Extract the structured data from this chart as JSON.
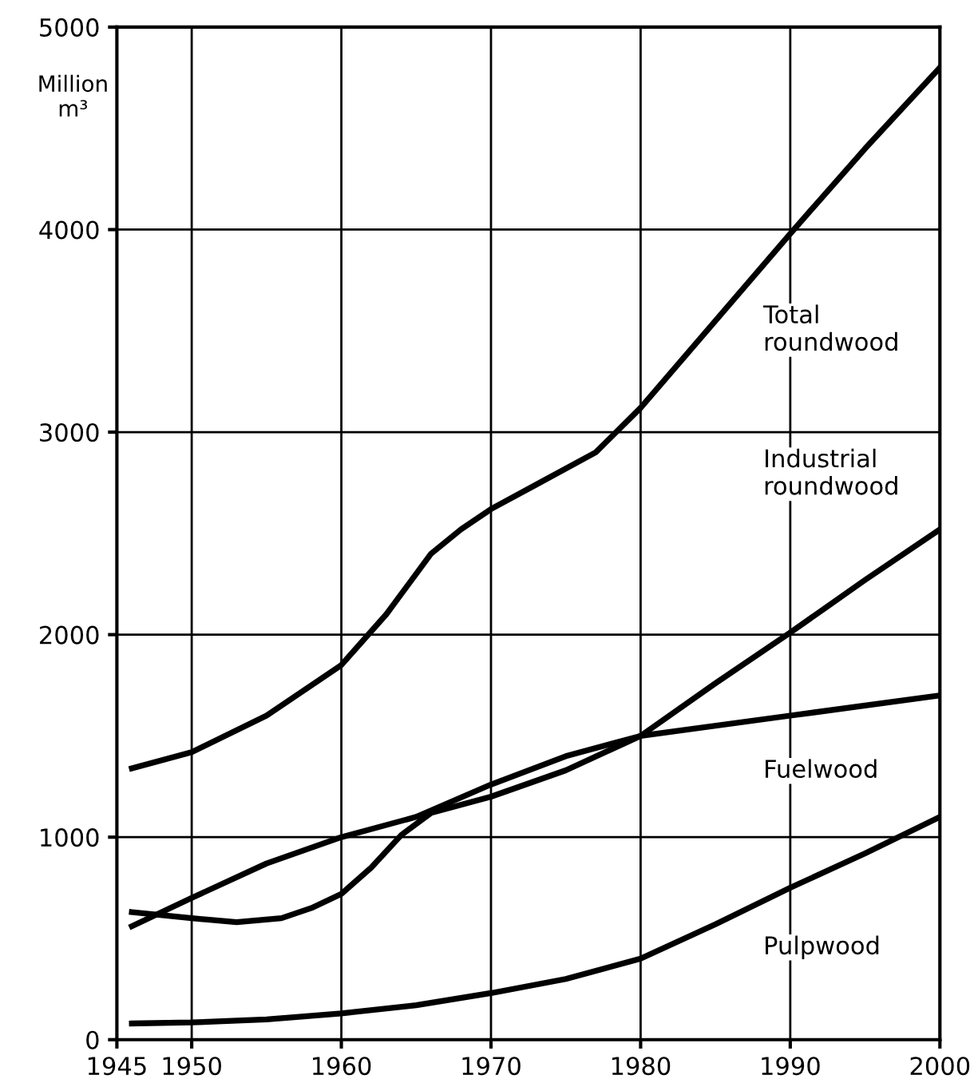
{
  "chart_data": {
    "type": "line",
    "ylabel": "Million\nm³",
    "xlim": [
      1945,
      2000
    ],
    "xticks": [
      1945,
      1950,
      1960,
      1970,
      1980,
      1990,
      2000
    ],
    "ylim": [
      0,
      5000
    ],
    "yticks": [
      0,
      1000,
      2000,
      3000,
      4000,
      5000
    ],
    "grid": true,
    "line_style": "solid",
    "marker": "none",
    "series": [
      {
        "name": "Total\nroundwood",
        "color": "#000000",
        "x": [
          1946,
          1950,
          1955,
          1960,
          1963,
          1966,
          1968,
          1970,
          1973,
          1977,
          1980,
          1985,
          1990,
          1995,
          2000
        ],
        "values": [
          1340,
          1420,
          1600,
          1850,
          2100,
          2400,
          2520,
          2620,
          2740,
          2900,
          3120,
          3550,
          3980,
          4400,
          4800
        ]
      },
      {
        "name": "Industrial\nroundwood",
        "color": "#000000",
        "x": [
          1946,
          1950,
          1953,
          1956,
          1958,
          1960,
          1962,
          1964,
          1966,
          1970,
          1975,
          1980,
          1985,
          1990,
          1995,
          2000
        ],
        "values": [
          630,
          600,
          580,
          600,
          650,
          720,
          850,
          1010,
          1120,
          1200,
          1330,
          1500,
          1760,
          2010,
          2270,
          2520
        ]
      },
      {
        "name": "Fuelwood",
        "color": "#000000",
        "x": [
          1946,
          1950,
          1955,
          1960,
          1965,
          1970,
          1975,
          1980,
          1990,
          2000
        ],
        "values": [
          560,
          700,
          870,
          1000,
          1100,
          1260,
          1400,
          1500,
          1600,
          1700
        ]
      },
      {
        "name": "Pulpwood",
        "color": "#000000",
        "x": [
          1946,
          1950,
          1955,
          1960,
          1965,
          1970,
          1975,
          1980,
          1985,
          1990,
          1995,
          2000
        ],
        "values": [
          80,
          85,
          100,
          130,
          170,
          230,
          300,
          400,
          570,
          750,
          920,
          1100
        ]
      }
    ]
  }
}
